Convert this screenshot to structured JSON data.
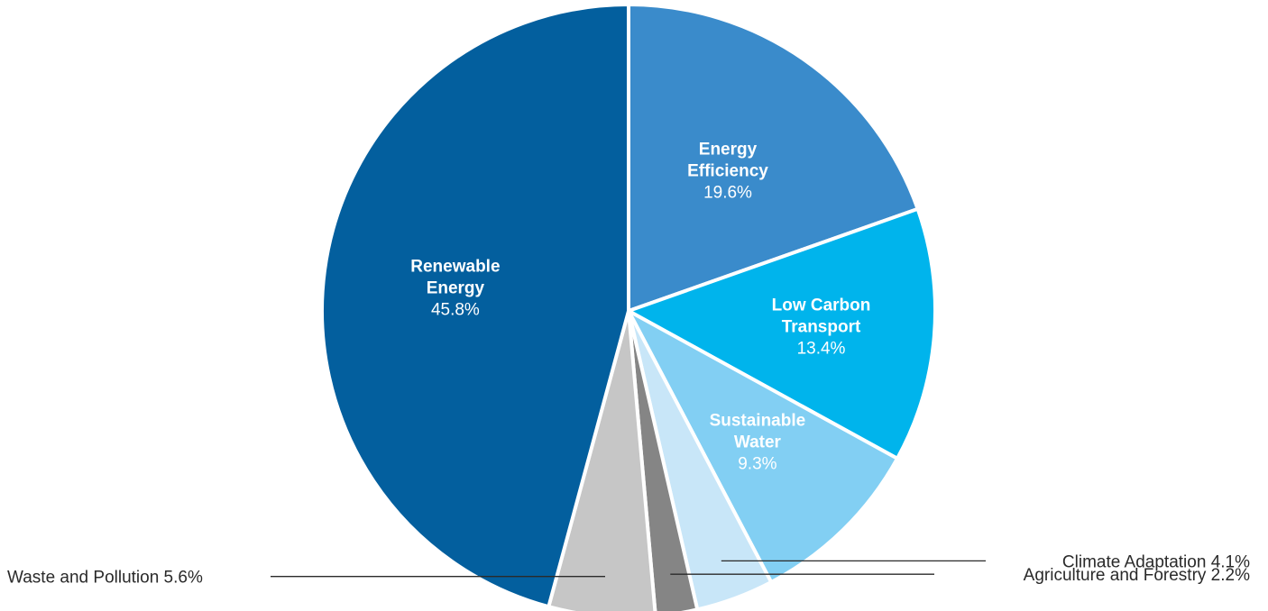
{
  "chart_data": {
    "type": "pie",
    "title": "",
    "slices": [
      {
        "name": "Energy Efficiency",
        "name_lines": [
          "Energy",
          "Efficiency"
        ],
        "value": 19.6,
        "value_label": "19.6%",
        "color": "#3a8bcb",
        "text_color": "#ffffff",
        "label": "inside"
      },
      {
        "name": "Low Carbon Transport",
        "name_lines": [
          "Low Carbon",
          "Transport"
        ],
        "value": 13.4,
        "value_label": "13.4%",
        "color": "#00b4ec",
        "text_color": "#ffffff",
        "label": "inside"
      },
      {
        "name": "Sustainable Water",
        "name_lines": [
          "Sustainable",
          "Water"
        ],
        "value": 9.3,
        "value_label": "9.3%",
        "color": "#82cff3",
        "text_color": "#ffffff",
        "label": "inside"
      },
      {
        "name": "Climate Adaptation",
        "outside_text": "Climate Adaptation 4.1%",
        "value": 4.1,
        "value_label": "4.1%",
        "color": "#c8e6f8",
        "label": "outside-right"
      },
      {
        "name": "Agriculture and Forestry",
        "outside_text": "Agriculture and Forestry 2.2%",
        "value": 2.2,
        "value_label": "2.2%",
        "color": "#858585",
        "label": "outside-right"
      },
      {
        "name": "Waste and Pollution",
        "outside_text": "Waste and Pollution 5.6%",
        "value": 5.6,
        "value_label": "5.6%",
        "color": "#c6c6c6",
        "label": "outside-left"
      },
      {
        "name": "Renewable Energy",
        "name_lines": [
          "Renewable",
          "Energy"
        ],
        "value": 45.8,
        "value_label": "45.8%",
        "color": "#035f9e",
        "text_color": "#ffffff",
        "label": "inside"
      }
    ],
    "start": "top",
    "direction": "clockwise"
  }
}
